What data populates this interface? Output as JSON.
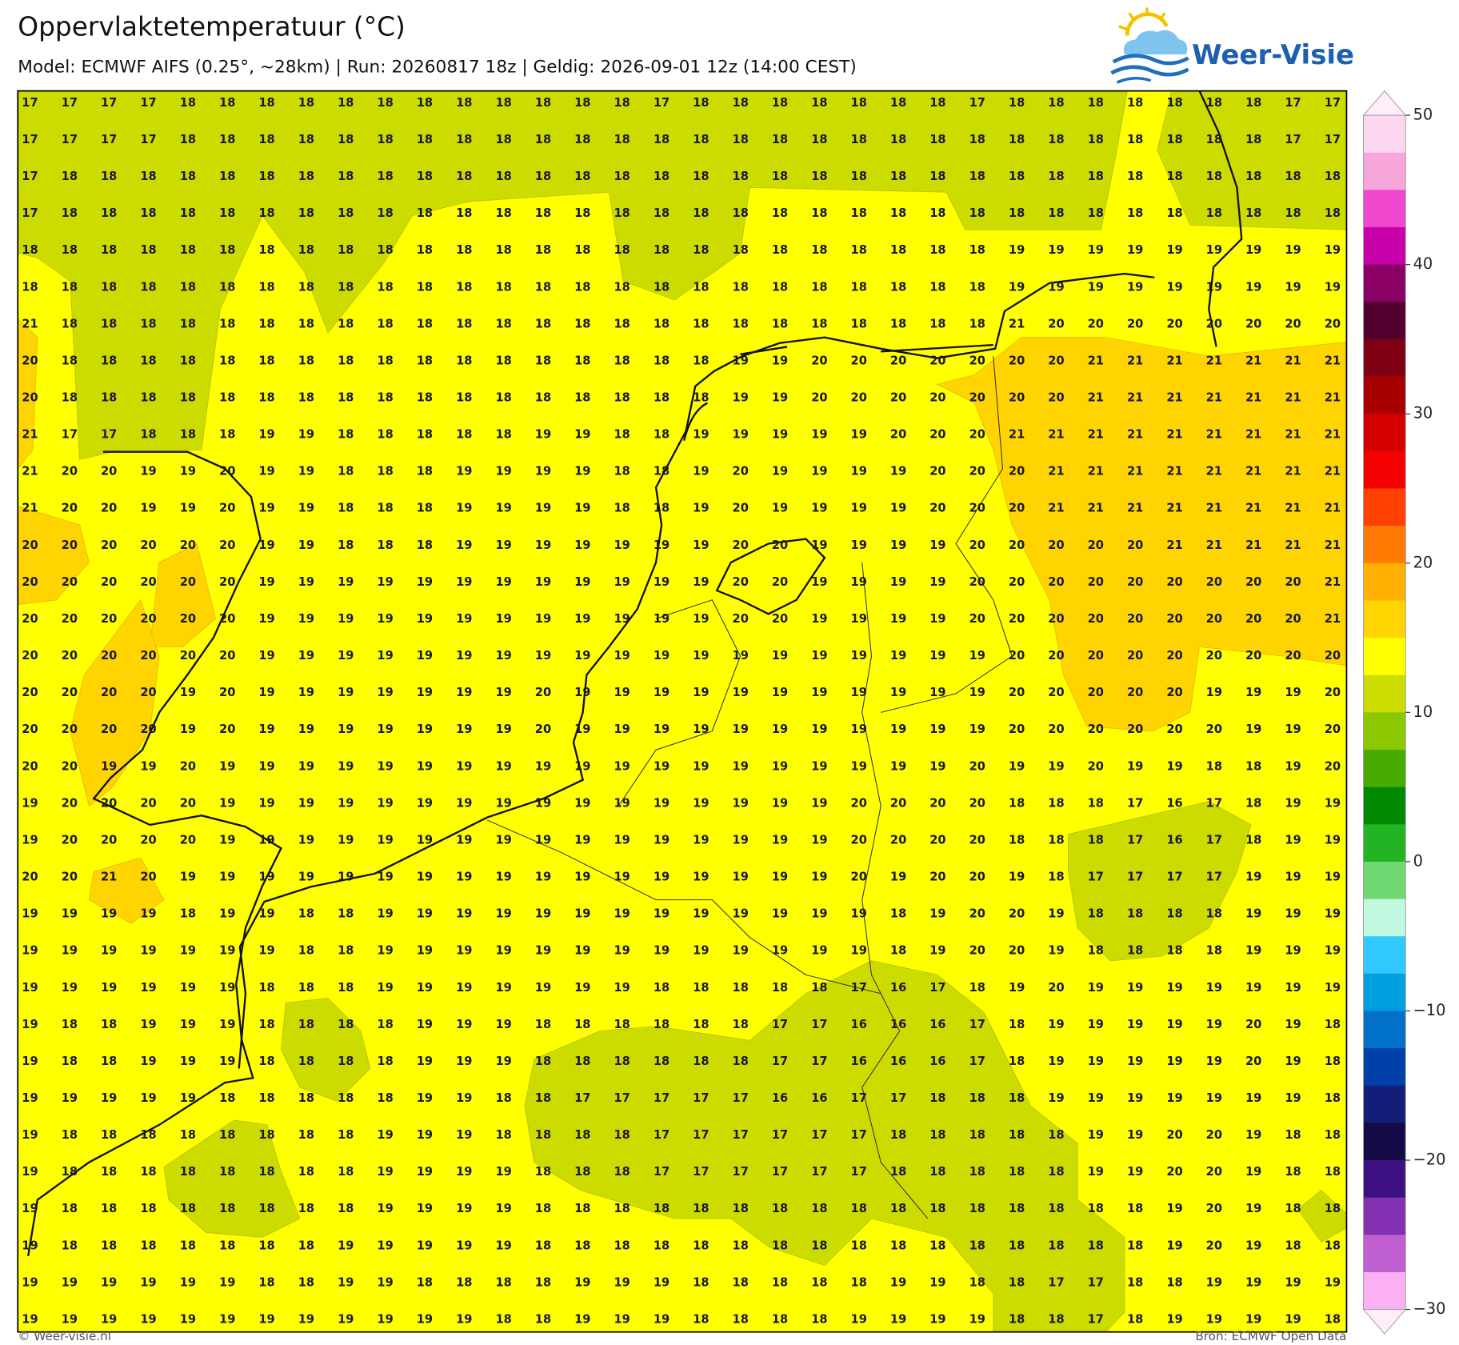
{
  "header": {
    "title": "Oppervlaktetemperatuur (°C)",
    "subtitle": "Model: ECMWF AIFS (0.25°, ~28km)  |  Run: 20260817 18z  |  Geldig: 2026-09-01 12z (14:00 CEST)",
    "logo": "Weer-Visie"
  },
  "map": {
    "values": [
      [
        17,
        17,
        17,
        17,
        18,
        18,
        18,
        18,
        18,
        18,
        18,
        18,
        18,
        18,
        18,
        18,
        17,
        18,
        18,
        18,
        18,
        18,
        18,
        18,
        17,
        18,
        18,
        18,
        18,
        18,
        18,
        18,
        17,
        17
      ],
      [
        17,
        17,
        17,
        17,
        18,
        18,
        18,
        18,
        18,
        18,
        18,
        18,
        18,
        18,
        18,
        18,
        18,
        18,
        18,
        18,
        18,
        18,
        18,
        18,
        18,
        18,
        18,
        18,
        18,
        18,
        18,
        18,
        17,
        17
      ],
      [
        17,
        18,
        18,
        18,
        18,
        18,
        18,
        18,
        18,
        18,
        18,
        18,
        18,
        18,
        18,
        18,
        18,
        18,
        18,
        18,
        18,
        18,
        18,
        18,
        18,
        18,
        18,
        18,
        18,
        18,
        18,
        18,
        18,
        18
      ],
      [
        17,
        18,
        18,
        18,
        18,
        18,
        18,
        18,
        18,
        18,
        18,
        18,
        18,
        18,
        18,
        18,
        18,
        18,
        18,
        18,
        18,
        18,
        18,
        18,
        18,
        18,
        18,
        18,
        18,
        18,
        18,
        18,
        18,
        18
      ],
      [
        18,
        18,
        18,
        18,
        18,
        18,
        18,
        18,
        18,
        18,
        18,
        18,
        18,
        18,
        18,
        18,
        18,
        18,
        18,
        18,
        18,
        18,
        18,
        18,
        18,
        19,
        19,
        19,
        19,
        19,
        19,
        19,
        19,
        19
      ],
      [
        18,
        18,
        18,
        18,
        18,
        18,
        18,
        18,
        18,
        18,
        18,
        18,
        18,
        18,
        18,
        18,
        18,
        18,
        18,
        18,
        18,
        18,
        18,
        18,
        18,
        19,
        19,
        19,
        19,
        19,
        19,
        19,
        19,
        19
      ],
      [
        21,
        18,
        18,
        18,
        18,
        18,
        18,
        18,
        18,
        18,
        18,
        18,
        18,
        18,
        18,
        18,
        18,
        18,
        18,
        18,
        18,
        18,
        18,
        18,
        18,
        21,
        20,
        20,
        20,
        20,
        20,
        20,
        20,
        20
      ],
      [
        20,
        18,
        18,
        18,
        18,
        18,
        18,
        18,
        18,
        18,
        18,
        18,
        18,
        18,
        18,
        18,
        18,
        18,
        19,
        19,
        20,
        20,
        20,
        20,
        20,
        20,
        20,
        21,
        21,
        21,
        21,
        21,
        21,
        21
      ],
      [
        20,
        18,
        18,
        18,
        18,
        18,
        18,
        18,
        18,
        18,
        18,
        18,
        18,
        18,
        18,
        18,
        18,
        18,
        19,
        19,
        20,
        20,
        20,
        20,
        20,
        20,
        20,
        21,
        21,
        21,
        21,
        21,
        21,
        21
      ],
      [
        21,
        17,
        17,
        18,
        18,
        18,
        19,
        19,
        18,
        18,
        18,
        18,
        18,
        19,
        19,
        18,
        18,
        19,
        19,
        19,
        19,
        19,
        20,
        20,
        20,
        21,
        21,
        21,
        21,
        21,
        21,
        21,
        21,
        21
      ],
      [
        21,
        20,
        20,
        19,
        19,
        20,
        19,
        19,
        18,
        18,
        18,
        19,
        19,
        19,
        19,
        18,
        18,
        19,
        20,
        19,
        19,
        19,
        19,
        20,
        20,
        20,
        21,
        21,
        21,
        21,
        21,
        21,
        21,
        21
      ],
      [
        21,
        20,
        20,
        19,
        19,
        20,
        19,
        19,
        18,
        18,
        18,
        19,
        19,
        19,
        19,
        18,
        18,
        19,
        20,
        19,
        19,
        19,
        19,
        20,
        20,
        20,
        21,
        21,
        21,
        21,
        21,
        21,
        21,
        21
      ],
      [
        20,
        20,
        20,
        20,
        20,
        20,
        19,
        19,
        18,
        18,
        18,
        19,
        19,
        19,
        19,
        19,
        19,
        19,
        20,
        20,
        19,
        19,
        19,
        19,
        20,
        20,
        20,
        20,
        20,
        21,
        21,
        21,
        21,
        21
      ],
      [
        20,
        20,
        20,
        20,
        20,
        20,
        19,
        19,
        19,
        19,
        19,
        19,
        19,
        19,
        19,
        19,
        19,
        19,
        20,
        20,
        19,
        19,
        19,
        19,
        20,
        20,
        20,
        20,
        20,
        20,
        20,
        20,
        20,
        21
      ],
      [
        20,
        20,
        20,
        20,
        20,
        20,
        19,
        19,
        19,
        19,
        19,
        19,
        19,
        19,
        19,
        19,
        19,
        19,
        20,
        20,
        19,
        19,
        19,
        19,
        20,
        20,
        20,
        20,
        20,
        20,
        20,
        20,
        20,
        21
      ],
      [
        20,
        20,
        20,
        20,
        20,
        20,
        19,
        19,
        19,
        19,
        19,
        19,
        19,
        19,
        19,
        19,
        19,
        19,
        19,
        19,
        19,
        19,
        19,
        19,
        19,
        20,
        20,
        20,
        20,
        20,
        20,
        20,
        20,
        20
      ],
      [
        20,
        20,
        20,
        20,
        19,
        20,
        19,
        19,
        19,
        19,
        19,
        19,
        19,
        20,
        19,
        19,
        19,
        19,
        19,
        19,
        19,
        19,
        19,
        19,
        19,
        20,
        20,
        20,
        20,
        20,
        19,
        19,
        19,
        20
      ],
      [
        20,
        20,
        20,
        20,
        19,
        20,
        19,
        19,
        19,
        19,
        19,
        19,
        19,
        20,
        19,
        19,
        19,
        19,
        19,
        19,
        19,
        19,
        19,
        19,
        19,
        20,
        20,
        20,
        20,
        20,
        20,
        19,
        19,
        20
      ],
      [
        20,
        20,
        19,
        19,
        20,
        19,
        19,
        19,
        19,
        19,
        19,
        19,
        19,
        19,
        19,
        19,
        19,
        19,
        19,
        19,
        19,
        19,
        19,
        19,
        20,
        19,
        19,
        20,
        19,
        19,
        18,
        18,
        19,
        20
      ],
      [
        19,
        20,
        20,
        20,
        20,
        19,
        19,
        19,
        19,
        19,
        19,
        19,
        19,
        19,
        19,
        19,
        19,
        19,
        19,
        19,
        19,
        20,
        20,
        20,
        20,
        18,
        18,
        18,
        17,
        16,
        17,
        18,
        19,
        19
      ],
      [
        19,
        20,
        20,
        20,
        20,
        19,
        19,
        19,
        19,
        19,
        19,
        19,
        19,
        19,
        19,
        19,
        19,
        19,
        19,
        19,
        19,
        20,
        20,
        20,
        20,
        18,
        18,
        18,
        17,
        16,
        17,
        18,
        19,
        19
      ],
      [
        20,
        20,
        21,
        20,
        19,
        19,
        19,
        19,
        19,
        19,
        19,
        19,
        19,
        19,
        19,
        19,
        19,
        19,
        19,
        19,
        19,
        20,
        19,
        20,
        20,
        19,
        18,
        17,
        17,
        17,
        17,
        19,
        19,
        19
      ],
      [
        19,
        19,
        19,
        19,
        18,
        19,
        19,
        18,
        18,
        19,
        19,
        19,
        19,
        19,
        19,
        19,
        19,
        19,
        19,
        19,
        19,
        19,
        18,
        19,
        20,
        20,
        19,
        18,
        18,
        18,
        18,
        19,
        19,
        19
      ],
      [
        19,
        19,
        19,
        19,
        19,
        19,
        19,
        18,
        18,
        19,
        19,
        19,
        19,
        19,
        19,
        19,
        19,
        19,
        19,
        19,
        19,
        19,
        18,
        19,
        20,
        20,
        19,
        18,
        18,
        18,
        18,
        19,
        19,
        19
      ],
      [
        19,
        19,
        19,
        19,
        19,
        19,
        18,
        18,
        18,
        19,
        19,
        19,
        19,
        19,
        19,
        19,
        18,
        18,
        18,
        18,
        18,
        17,
        16,
        17,
        18,
        19,
        20,
        19,
        19,
        19,
        19,
        19,
        19,
        19
      ],
      [
        19,
        18,
        18,
        19,
        19,
        19,
        18,
        18,
        18,
        18,
        19,
        19,
        19,
        18,
        18,
        18,
        18,
        18,
        18,
        17,
        17,
        16,
        16,
        16,
        17,
        18,
        19,
        19,
        19,
        19,
        19,
        20,
        19,
        18
      ],
      [
        19,
        18,
        18,
        19,
        19,
        19,
        18,
        18,
        18,
        18,
        19,
        19,
        19,
        18,
        18,
        18,
        18,
        18,
        18,
        17,
        17,
        16,
        16,
        16,
        17,
        18,
        19,
        19,
        19,
        19,
        19,
        20,
        19,
        18
      ],
      [
        19,
        19,
        19,
        19,
        19,
        18,
        18,
        18,
        18,
        18,
        19,
        19,
        18,
        18,
        17,
        17,
        17,
        17,
        17,
        16,
        16,
        17,
        17,
        18,
        18,
        18,
        19,
        19,
        19,
        19,
        19,
        19,
        19,
        18
      ],
      [
        19,
        18,
        18,
        18,
        18,
        18,
        18,
        18,
        18,
        19,
        19,
        19,
        18,
        18,
        18,
        18,
        17,
        17,
        17,
        17,
        17,
        17,
        18,
        18,
        18,
        18,
        18,
        19,
        19,
        20,
        20,
        19,
        18,
        18
      ],
      [
        19,
        18,
        18,
        18,
        18,
        18,
        18,
        18,
        18,
        19,
        19,
        19,
        19,
        18,
        18,
        18,
        17,
        17,
        17,
        17,
        17,
        17,
        18,
        18,
        18,
        18,
        18,
        19,
        19,
        20,
        20,
        19,
        18,
        18
      ],
      [
        19,
        18,
        18,
        18,
        18,
        18,
        18,
        18,
        18,
        19,
        19,
        19,
        19,
        18,
        18,
        18,
        18,
        18,
        18,
        18,
        18,
        18,
        18,
        18,
        18,
        18,
        18,
        18,
        18,
        19,
        20,
        19,
        18,
        18
      ],
      [
        19,
        18,
        18,
        18,
        18,
        18,
        18,
        18,
        19,
        19,
        19,
        19,
        19,
        18,
        18,
        18,
        18,
        18,
        18,
        18,
        18,
        18,
        18,
        18,
        18,
        18,
        18,
        18,
        18,
        19,
        20,
        19,
        18,
        18
      ],
      [
        19,
        19,
        19,
        19,
        19,
        19,
        18,
        18,
        19,
        19,
        18,
        18,
        18,
        18,
        19,
        19,
        19,
        18,
        18,
        18,
        18,
        18,
        19,
        19,
        18,
        18,
        17,
        17,
        18,
        18,
        19,
        19,
        19,
        19
      ],
      [
        19,
        19,
        19,
        19,
        19,
        19,
        19,
        19,
        19,
        19,
        19,
        19,
        18,
        18,
        19,
        19,
        19,
        18,
        18,
        18,
        18,
        19,
        19,
        19,
        19,
        18,
        18,
        17,
        18,
        19,
        19,
        19,
        19,
        18
      ]
    ]
  },
  "colorbar": {
    "lim": [
      -30,
      50
    ],
    "ticks": [
      50,
      40,
      30,
      20,
      10,
      0,
      {
        "value": -10,
        "label": "−10"
      },
      {
        "value": -20,
        "label": "−20"
      },
      {
        "value": -30,
        "label": "−30"
      }
    ],
    "colors": [
      "#fcd8f0",
      "#f7a6d9",
      "#ef48cf",
      "#c800aa",
      "#8a0064",
      "#52002e",
      "#7e0012",
      "#a80000",
      "#d40000",
      "#f50000",
      "#ff4000",
      "#ff7a00",
      "#ffb000",
      "#ffd400",
      "#ffff00",
      "#cddc00",
      "#8cc800",
      "#48ac00",
      "#008800",
      "#22b422",
      "#70d870",
      "#c0f8e0",
      "#30c8ff",
      "#00a0e0",
      "#0070c8",
      "#0040a8",
      "#141e78",
      "#140a46",
      "#3c1080",
      "#8030b0",
      "#c060d0",
      "#fbb0f4"
    ]
  },
  "footer": {
    "copyright": "© Weer-visie.nl",
    "source": "Bron: ECMWF Open Data"
  }
}
